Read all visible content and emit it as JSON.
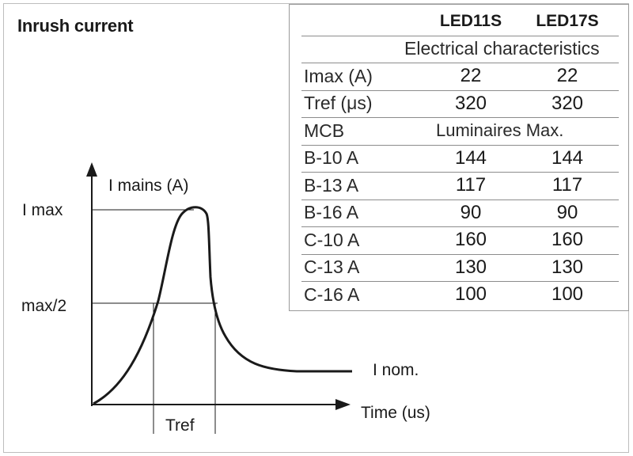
{
  "title": "Inrush current",
  "table": {
    "headers": [
      "LED11S",
      "LED17S"
    ],
    "section1": "Electrical characteristics",
    "rows1": [
      {
        "label": "Imax (A)",
        "v1": "22",
        "v2": "22"
      },
      {
        "label": "Tref (μs)",
        "v1": "320",
        "v2": "320"
      }
    ],
    "mcb_label": "MCB",
    "section2": "Luminaires Max.",
    "rows2": [
      {
        "label": "B-10 A",
        "v1": "144",
        "v2": "144"
      },
      {
        "label": "B-13 A",
        "v1": "117",
        "v2": "117"
      },
      {
        "label": "B-16 A",
        "v1": "90",
        "v2": "90"
      },
      {
        "label": "C-10 A",
        "v1": "160",
        "v2": "160"
      },
      {
        "label": "C-13 A",
        "v1": "130",
        "v2": "130"
      },
      {
        "label": "C-16 A",
        "v1": "100",
        "v2": "100"
      }
    ]
  },
  "graph": {
    "y_axis_label": "I mains (A)",
    "x_axis_label": "Time (us)",
    "imax_label": "I max",
    "half_label": "max/2",
    "tref_label": "Tref",
    "inom_label": "I nom."
  }
}
